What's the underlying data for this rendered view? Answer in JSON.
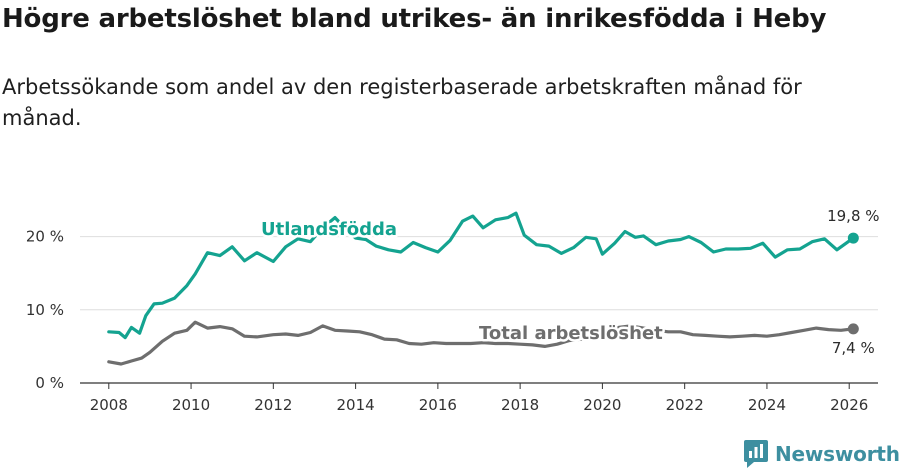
{
  "header": {
    "title": "Högre arbetslöshet bland utrikes- än inrikesfödda i Heby",
    "subtitle": "Arbetssökande som andel av den registerbaserade arbetskraften månad för månad."
  },
  "brand": {
    "name": "Newsworthy",
    "color": "#3d8fa0"
  },
  "chart_data": {
    "type": "line",
    "title": "Högre arbetslöshet bland utrikes- än inrikesfödda i Heby",
    "subtitle": "Arbetssökande som andel av den registerbaserade arbetskraften månad för månad.",
    "xlabel": "",
    "ylabel": "",
    "xlim": [
      2007.3,
      2026.7
    ],
    "ylim": [
      0,
      25
    ],
    "x_ticks": [
      2008,
      2010,
      2012,
      2014,
      2016,
      2018,
      2020,
      2022,
      2024,
      2026
    ],
    "y_ticks": [
      {
        "value": 0,
        "label": "0 %"
      },
      {
        "value": 10,
        "label": "10 %"
      },
      {
        "value": 20,
        "label": "20 %"
      }
    ],
    "grid": "horizontal",
    "series": [
      {
        "name": "Utlandsfödda",
        "color": "#14a390",
        "x": [
          2008.0,
          2008.25,
          2008.4,
          2008.55,
          2008.75,
          2008.9,
          2009.1,
          2009.3,
          2009.6,
          2009.9,
          2010.1,
          2010.4,
          2010.7,
          2011.0,
          2011.3,
          2011.6,
          2012.0,
          2012.3,
          2012.6,
          2012.9,
          2013.2,
          2013.5,
          2013.75,
          2014.0,
          2014.25,
          2014.5,
          2014.8,
          2015.1,
          2015.4,
          2015.7,
          2016.0,
          2016.3,
          2016.6,
          2016.85,
          2017.1,
          2017.4,
          2017.7,
          2017.9,
          2018.1,
          2018.4,
          2018.7,
          2019.0,
          2019.3,
          2019.6,
          2019.85,
          2020.0,
          2020.3,
          2020.55,
          2020.8,
          2021.0,
          2021.3,
          2021.6,
          2021.9,
          2022.1,
          2022.4,
          2022.7,
          2023.0,
          2023.3,
          2023.6,
          2023.9,
          2024.2,
          2024.5,
          2024.8,
          2025.1,
          2025.4,
          2025.7,
          2025.9,
          2026.1
        ],
        "values": [
          7.0,
          6.9,
          6.2,
          7.6,
          6.8,
          9.2,
          10.8,
          10.9,
          11.6,
          13.3,
          14.9,
          17.8,
          17.4,
          18.6,
          16.7,
          17.8,
          16.6,
          18.6,
          19.7,
          19.3,
          21.2,
          22.6,
          21.1,
          19.8,
          19.6,
          18.7,
          18.2,
          17.9,
          19.2,
          18.5,
          17.9,
          19.5,
          22.1,
          22.8,
          21.2,
          22.3,
          22.6,
          23.2,
          20.2,
          18.9,
          18.7,
          17.7,
          18.5,
          19.9,
          19.7,
          17.6,
          19.1,
          20.7,
          19.9,
          20.1,
          18.9,
          19.4,
          19.6,
          20.0,
          19.2,
          17.9,
          18.3,
          18.3,
          18.4,
          19.1,
          17.2,
          18.2,
          18.3,
          19.3,
          19.7,
          18.2,
          19.0,
          19.8
        ]
      },
      {
        "name": "Total arbetslöshet",
        "color": "#6e6e6e",
        "x": [
          2008.0,
          2008.3,
          2008.55,
          2008.8,
          2009.0,
          2009.3,
          2009.6,
          2009.9,
          2010.1,
          2010.4,
          2010.7,
          2011.0,
          2011.3,
          2011.6,
          2012.0,
          2012.3,
          2012.6,
          2012.9,
          2013.2,
          2013.5,
          2013.8,
          2014.1,
          2014.4,
          2014.7,
          2015.0,
          2015.3,
          2015.6,
          2015.9,
          2016.2,
          2016.5,
          2016.8,
          2017.1,
          2017.4,
          2017.7,
          2018.0,
          2018.3,
          2018.6,
          2018.9,
          2019.2,
          2019.5,
          2019.8,
          2020.1,
          2020.4,
          2020.7,
          2021.0,
          2021.3,
          2021.6,
          2021.9,
          2022.2,
          2022.5,
          2022.8,
          2023.1,
          2023.4,
          2023.7,
          2024.0,
          2024.3,
          2024.6,
          2024.9,
          2025.2,
          2025.5,
          2025.8,
          2026.1
        ],
        "values": [
          2.9,
          2.6,
          3.0,
          3.4,
          4.2,
          5.7,
          6.8,
          7.2,
          8.3,
          7.5,
          7.7,
          7.4,
          6.4,
          6.3,
          6.6,
          6.7,
          6.5,
          6.9,
          7.8,
          7.2,
          7.1,
          7.0,
          6.6,
          6.0,
          5.9,
          5.4,
          5.3,
          5.5,
          5.4,
          5.4,
          5.4,
          5.5,
          5.4,
          5.4,
          5.3,
          5.2,
          5.0,
          5.3,
          5.8,
          6.0,
          6.3,
          7.0,
          7.6,
          7.8,
          7.5,
          7.2,
          7.0,
          7.0,
          6.6,
          6.5,
          6.4,
          6.3,
          6.4,
          6.5,
          6.4,
          6.6,
          6.9,
          7.2,
          7.5,
          7.3,
          7.2,
          7.4
        ]
      }
    ],
    "annotations": [
      {
        "series": "Utlandsfödda",
        "x": 2026.1,
        "value": 19.8,
        "label": "19,8 %",
        "placement": "above"
      },
      {
        "series": "Total arbetslöshet",
        "x": 2026.1,
        "value": 7.4,
        "label": "7,4 %",
        "placement": "below"
      }
    ],
    "legend": "inline labels"
  }
}
